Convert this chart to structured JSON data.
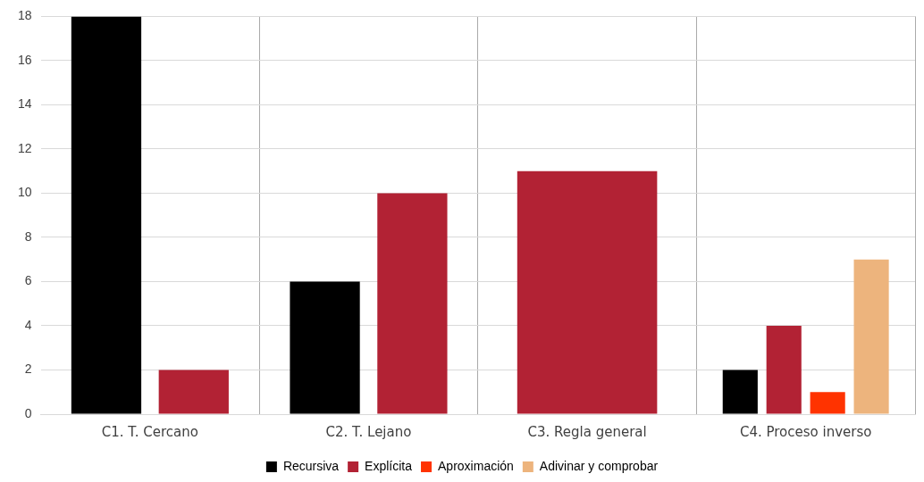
{
  "chart_data": {
    "type": "bar",
    "categories": [
      "C1. T. Cercano",
      "C2. T. Lejano",
      "C3. Regla general",
      "C4. Proceso inverso"
    ],
    "series": [
      {
        "name": "Recursiva",
        "color": "#000000",
        "values": [
          18,
          6,
          null,
          2
        ]
      },
      {
        "name": "Explícita",
        "color": "#b22234",
        "values": [
          2,
          10,
          11,
          4
        ]
      },
      {
        "name": "Aproximación",
        "color": "#ff3300",
        "values": [
          null,
          null,
          null,
          1
        ]
      },
      {
        "name": "Adivinar y comprobar",
        "color": "#edb47d",
        "values": [
          null,
          null,
          null,
          7
        ]
      }
    ],
    "ylim": [
      0,
      18
    ],
    "yticks": [
      0,
      2,
      4,
      6,
      8,
      10,
      12,
      14,
      16,
      18
    ],
    "grid": true,
    "legend": "bottom"
  }
}
